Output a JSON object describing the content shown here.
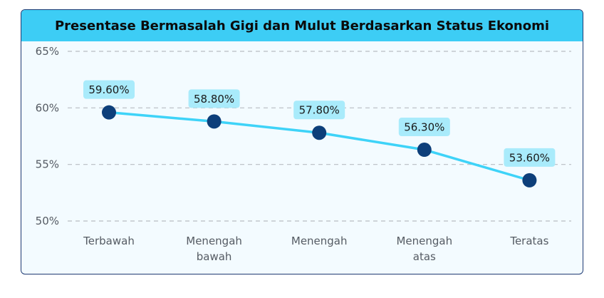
{
  "chart_data": {
    "type": "line",
    "title": "Presentase Bermasalah Gigi dan Mulut Berdasarkan Status Ekonomi",
    "categories": [
      [
        "Terbawah"
      ],
      [
        "Menengah",
        "bawah"
      ],
      [
        "Menengah"
      ],
      [
        "Menengah",
        "atas"
      ],
      [
        "Teratas"
      ]
    ],
    "values": [
      59.6,
      58.8,
      57.8,
      56.3,
      53.6
    ],
    "data_labels": [
      "59.60%",
      "58.80%",
      "57.80%",
      "56.30%",
      "53.60%"
    ],
    "yticks": [
      "65%",
      "60%",
      "55%",
      "50%"
    ],
    "ytick_values": [
      65,
      60,
      55,
      50
    ],
    "ylim": [
      50,
      65
    ],
    "grid": true,
    "colors": {
      "line": "#3ed3f8",
      "marker": "#0d3f7a",
      "label_bg": "#a9ebfb",
      "title_bg": "#3dcdf5",
      "grid": "#b8bcc2"
    }
  }
}
